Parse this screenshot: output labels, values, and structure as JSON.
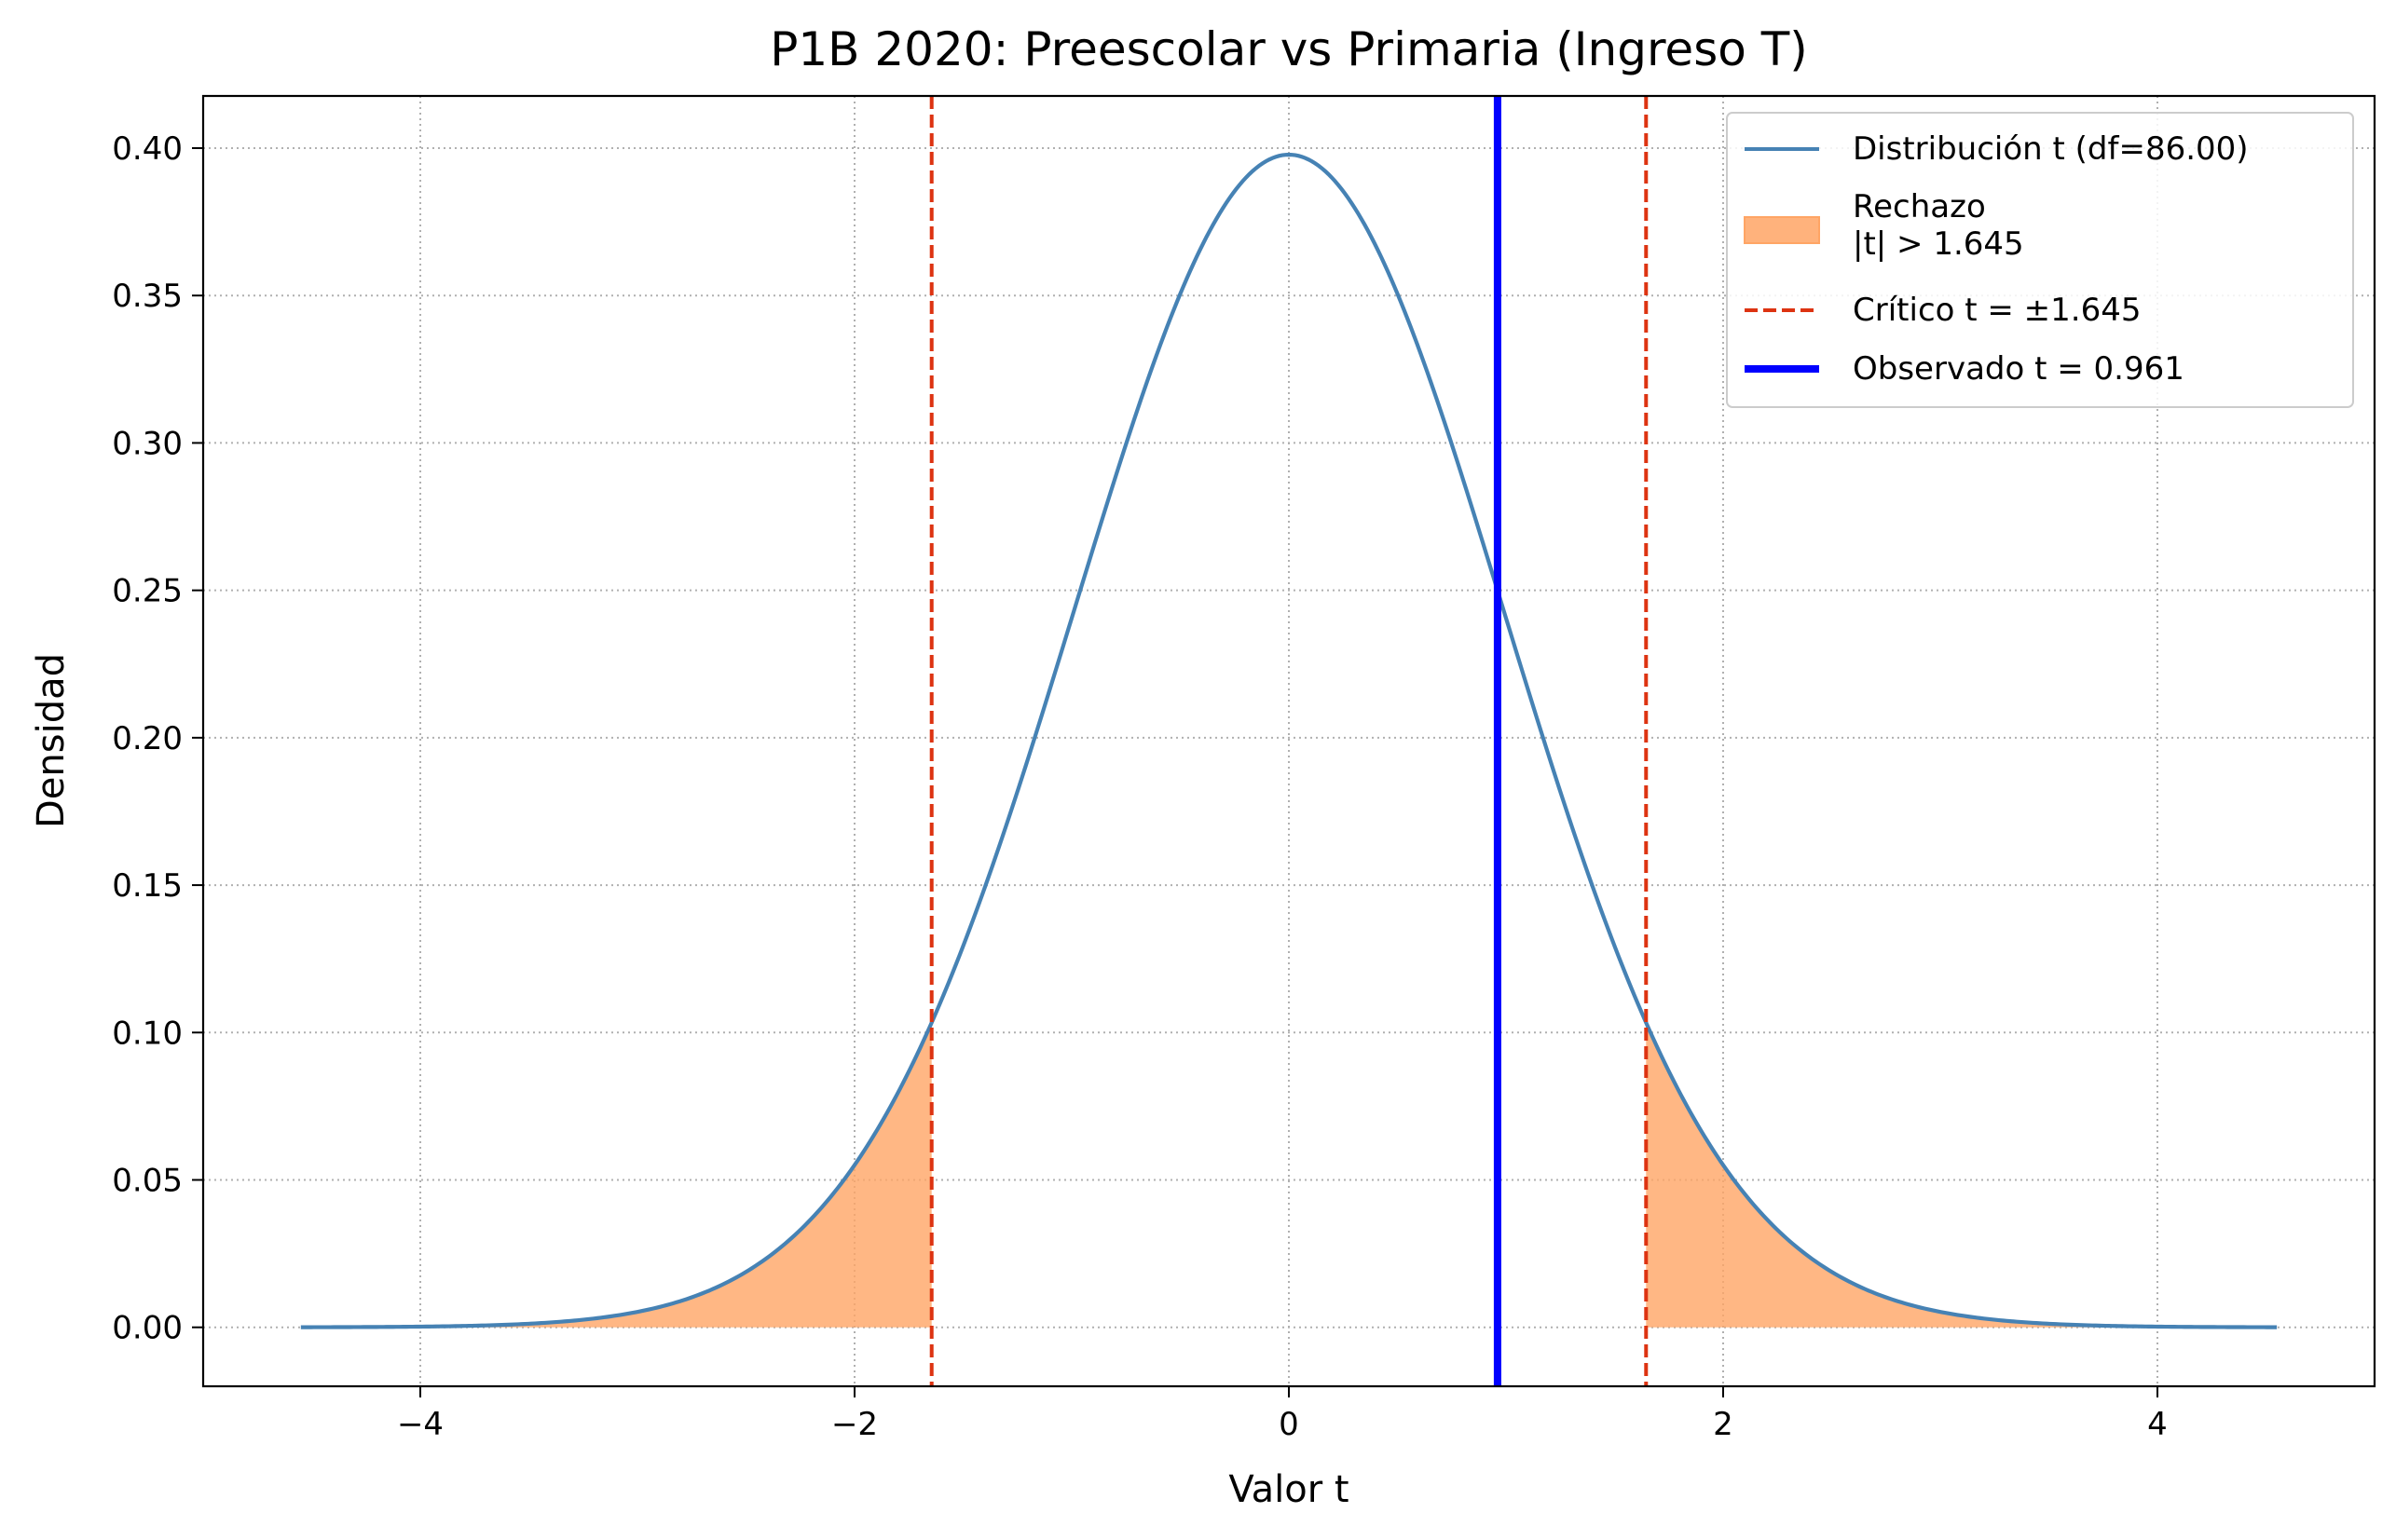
{
  "chart_data": {
    "type": "line",
    "title": "P1B 2020: Preescolar vs Primaria (Ingreso T)",
    "xlabel": "Valor t",
    "ylabel": "Densidad",
    "xlim": [
      -5,
      5
    ],
    "ylim": [
      -0.02,
      0.4177
    ],
    "xticks": [
      -4,
      -2,
      0,
      2,
      4
    ],
    "xtick_labels": [
      "−4",
      "−2",
      "0",
      "2",
      "4"
    ],
    "yticks": [
      0.0,
      0.05,
      0.1,
      0.15,
      0.2,
      0.25,
      0.3,
      0.35,
      0.4
    ],
    "ytick_labels": [
      "0.00",
      "0.05",
      "0.10",
      "0.15",
      "0.20",
      "0.25",
      "0.30",
      "0.35",
      "0.40"
    ],
    "grid": true,
    "legend_position": "top-right",
    "distribution": {
      "df": 86.0,
      "x_range": [
        -4.55,
        4.55
      ]
    },
    "critical_value": 1.645,
    "observed_t": 0.961,
    "series": [
      {
        "name": "Distribución t (df=86.00)",
        "kind": "line",
        "color": "#4682b4"
      },
      {
        "name": "Rechazo\n|t| > 1.645",
        "kind": "area",
        "color": "#ffa565"
      },
      {
        "name": "Crítico t = ±1.645",
        "kind": "dashed-vline",
        "color": "#dd3311"
      },
      {
        "name": "Observado t = 0.961",
        "kind": "vline",
        "color": "#0000ff"
      }
    ]
  }
}
